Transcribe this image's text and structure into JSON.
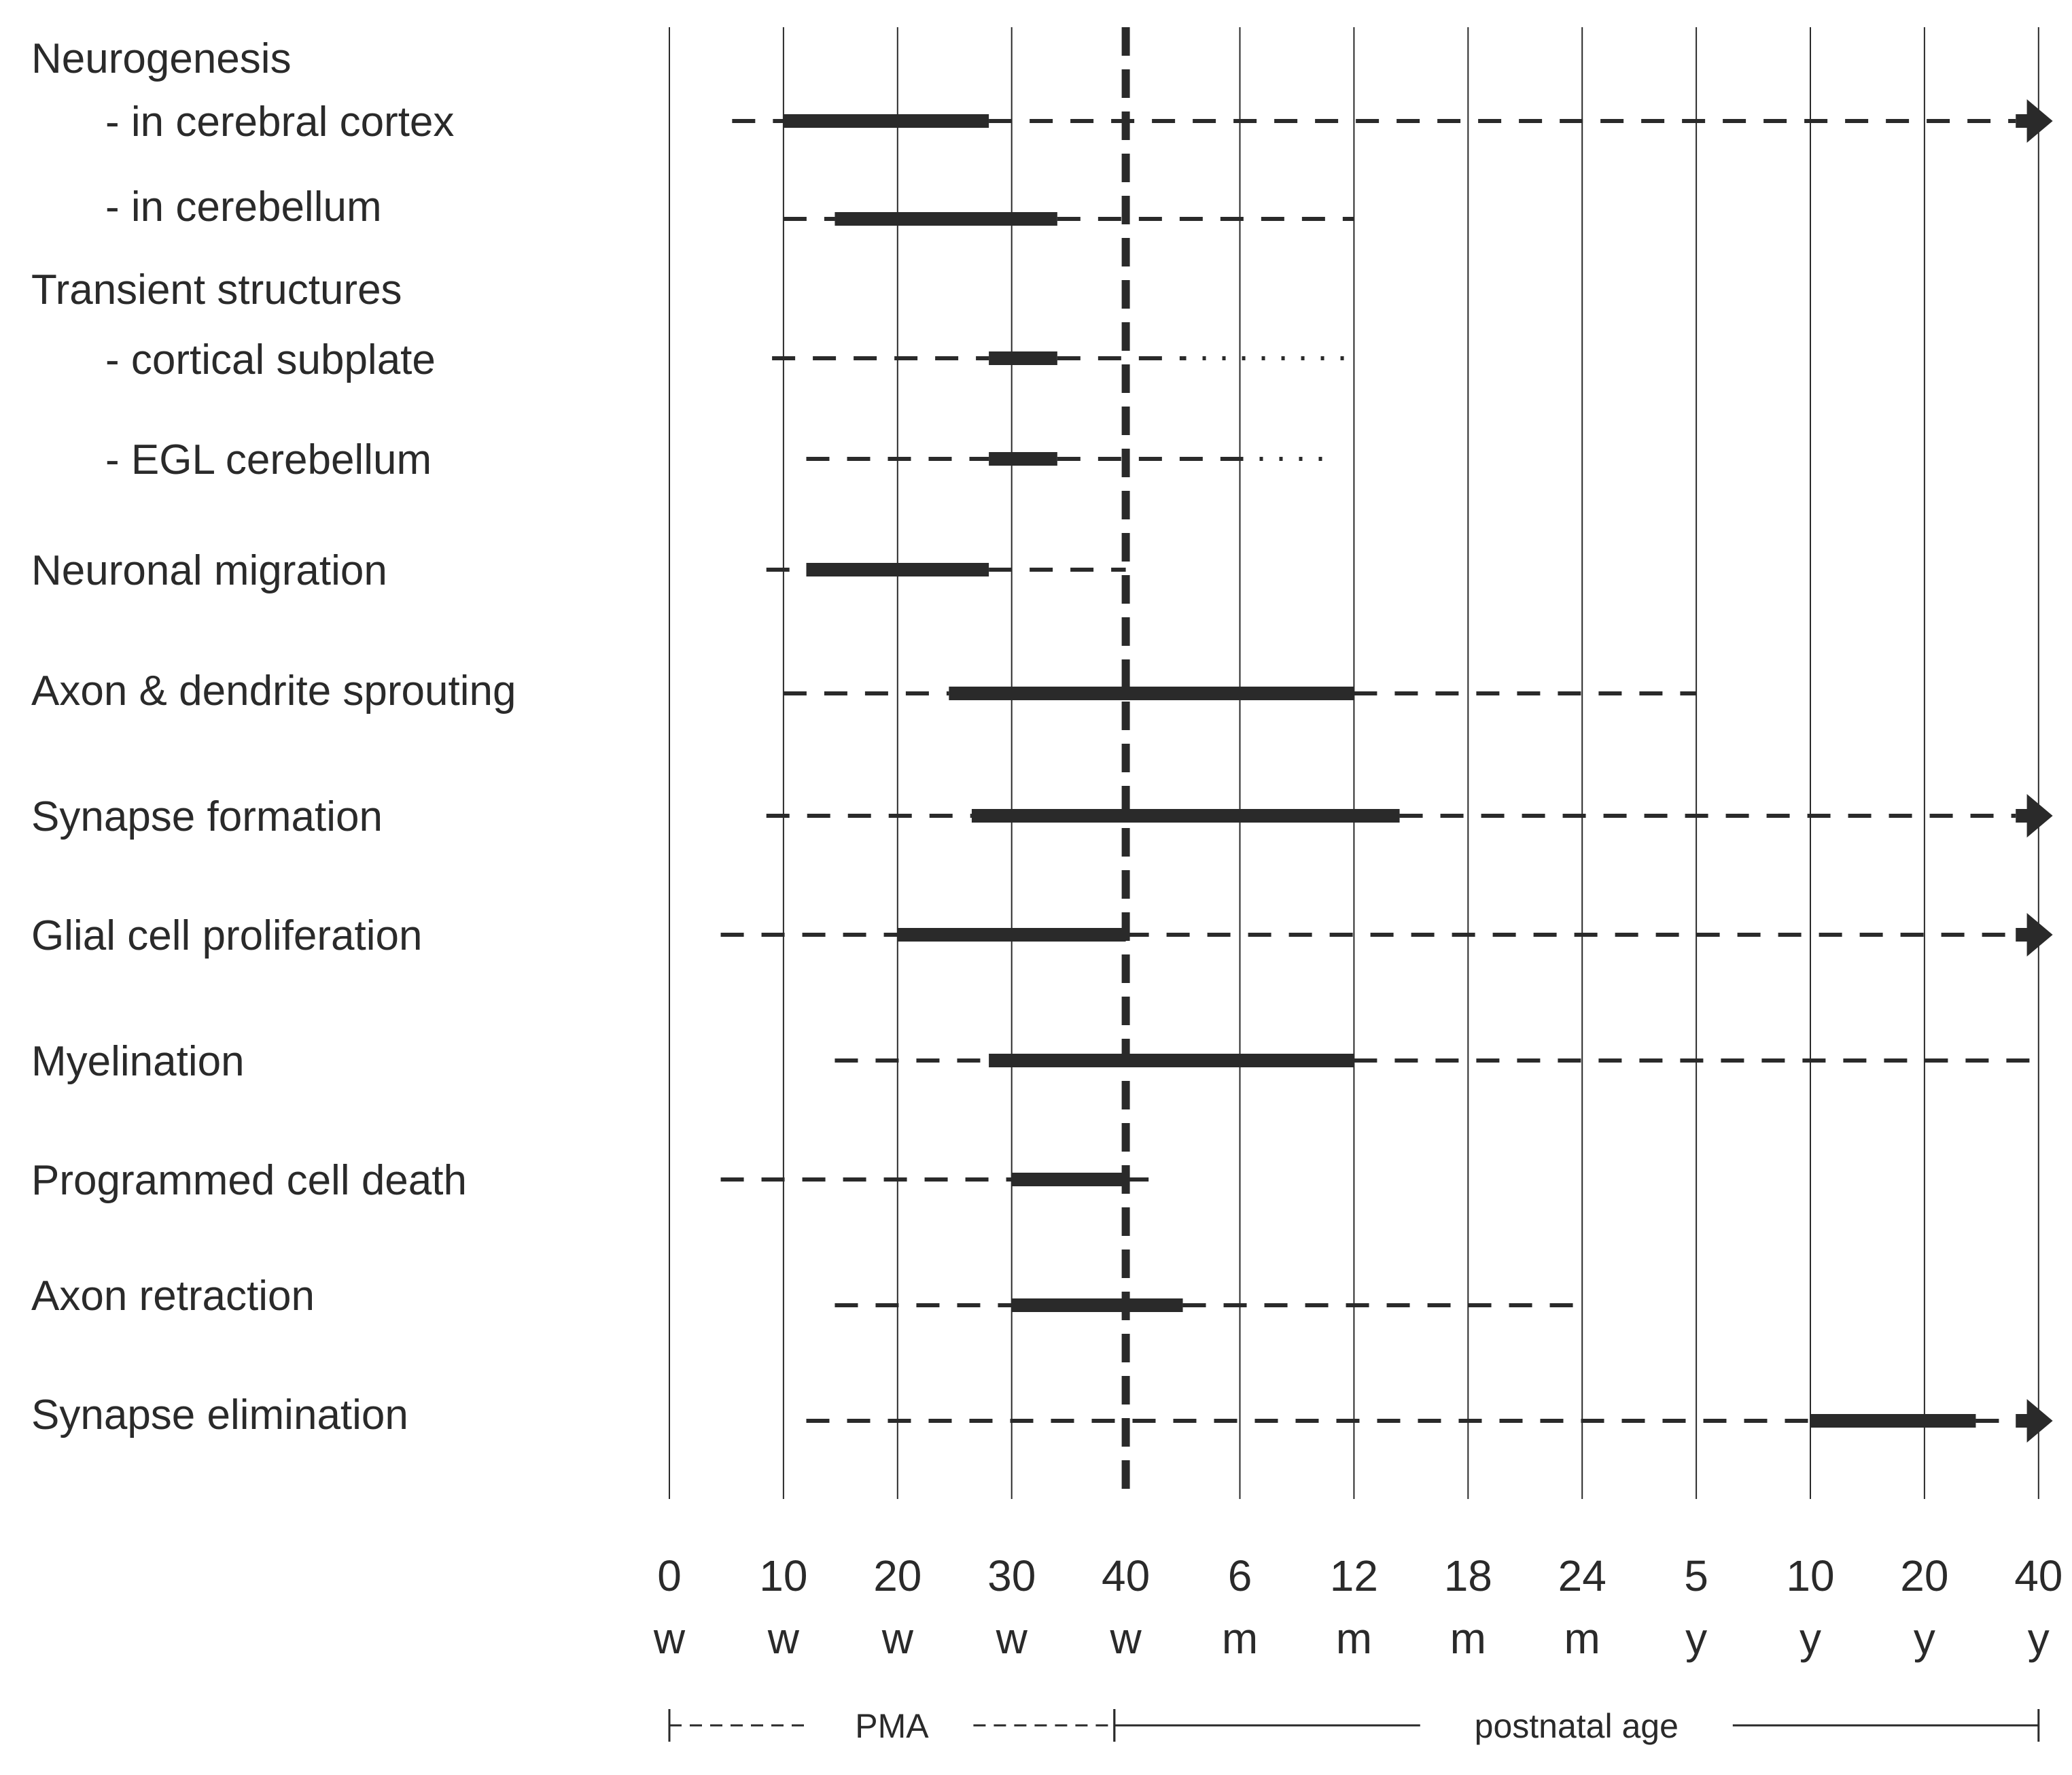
{
  "chart_data": {
    "type": "timeline",
    "title": "",
    "xlabel": "",
    "ylabel": "",
    "x_ticks": [
      {
        "value": "0",
        "unit": "w"
      },
      {
        "value": "10",
        "unit": "w"
      },
      {
        "value": "20",
        "unit": "w"
      },
      {
        "value": "30",
        "unit": "w"
      },
      {
        "value": "40",
        "unit": "w"
      },
      {
        "value": "6",
        "unit": "m"
      },
      {
        "value": "12",
        "unit": "m"
      },
      {
        "value": "18",
        "unit": "m"
      },
      {
        "value": "24",
        "unit": "m"
      },
      {
        "value": "5",
        "unit": "y"
      },
      {
        "value": "10",
        "unit": "y"
      },
      {
        "value": "20",
        "unit": "y"
      },
      {
        "value": "40",
        "unit": "y"
      }
    ],
    "birth_marker_tick_index": 4,
    "x_domain": [
      0,
      12
    ],
    "age_spans": [
      {
        "label": "PMA",
        "start": 0,
        "end": 3.9,
        "style": "dashed"
      },
      {
        "label": "postnatal age",
        "start": 3.9,
        "end": 12,
        "style": "solid"
      }
    ],
    "rows": [
      {
        "label": "Neurogenesis",
        "indent": 0,
        "heading": true
      },
      {
        "label": "-  in cerebral cortex",
        "indent": 1,
        "segments": [
          {
            "start": 0.55,
            "end": 1.0,
            "style": "dashed"
          },
          {
            "start": 1.0,
            "end": 2.8,
            "style": "solid"
          },
          {
            "start": 2.8,
            "end": 11.8,
            "style": "dashed"
          },
          {
            "start": 11.8,
            "end": 12.1,
            "style": "arrow"
          }
        ]
      },
      {
        "label": "-  in cerebellum",
        "indent": 1,
        "segments": [
          {
            "start": 1.0,
            "end": 1.45,
            "style": "dashed"
          },
          {
            "start": 1.45,
            "end": 3.4,
            "style": "solid"
          },
          {
            "start": 3.4,
            "end": 6.0,
            "style": "dashed"
          }
        ]
      },
      {
        "label": "Transient structures",
        "indent": 0,
        "heading": true
      },
      {
        "label": "-  cortical subplate",
        "indent": 1,
        "segments": [
          {
            "start": 0.9,
            "end": 2.8,
            "style": "dashed"
          },
          {
            "start": 2.8,
            "end": 3.4,
            "style": "solid"
          },
          {
            "start": 3.4,
            "end": 4.5,
            "style": "dashed"
          },
          {
            "start": 4.5,
            "end": 6.0,
            "style": "dotted"
          }
        ]
      },
      {
        "label": "-  EGL cerebellum",
        "indent": 1,
        "segments": [
          {
            "start": 1.2,
            "end": 2.8,
            "style": "dashed"
          },
          {
            "start": 2.8,
            "end": 3.4,
            "style": "solid"
          },
          {
            "start": 3.4,
            "end": 5.0,
            "style": "dashed"
          },
          {
            "start": 5.0,
            "end": 5.85,
            "style": "dotted"
          }
        ]
      },
      {
        "label": "Neuronal migration",
        "indent": 0,
        "segments": [
          {
            "start": 0.85,
            "end": 1.2,
            "style": "dashed"
          },
          {
            "start": 1.2,
            "end": 2.8,
            "style": "solid"
          },
          {
            "start": 2.8,
            "end": 4.0,
            "style": "dashed"
          }
        ]
      },
      {
        "label": "Axon & dendrite sprouting",
        "indent": 0,
        "segments": [
          {
            "start": 1.0,
            "end": 2.45,
            "style": "dashed"
          },
          {
            "start": 2.45,
            "end": 6.0,
            "style": "solid"
          },
          {
            "start": 6.0,
            "end": 9.0,
            "style": "dashed"
          }
        ]
      },
      {
        "label": "Synapse formation",
        "indent": 0,
        "segments": [
          {
            "start": 0.85,
            "end": 2.65,
            "style": "dashed"
          },
          {
            "start": 2.65,
            "end": 6.4,
            "style": "solid"
          },
          {
            "start": 6.4,
            "end": 11.8,
            "style": "dashed"
          },
          {
            "start": 11.8,
            "end": 12.1,
            "style": "arrow"
          }
        ]
      },
      {
        "label": "Glial cell proliferation",
        "indent": 0,
        "segments": [
          {
            "start": 0.45,
            "end": 2.0,
            "style": "dashed"
          },
          {
            "start": 2.0,
            "end": 4.0,
            "style": "solid"
          },
          {
            "start": 4.0,
            "end": 11.8,
            "style": "dashed"
          },
          {
            "start": 11.8,
            "end": 12.1,
            "style": "arrow"
          }
        ]
      },
      {
        "label": "Myelination",
        "indent": 0,
        "segments": [
          {
            "start": 1.45,
            "end": 2.8,
            "style": "dashed"
          },
          {
            "start": 2.8,
            "end": 6.0,
            "style": "solid"
          },
          {
            "start": 6.0,
            "end": 11.95,
            "style": "dashed"
          }
        ]
      },
      {
        "label": "Programmed cell death",
        "indent": 0,
        "segments": [
          {
            "start": 0.45,
            "end": 3.0,
            "style": "dashed"
          },
          {
            "start": 3.0,
            "end": 4.0,
            "style": "solid"
          },
          {
            "start": 4.0,
            "end": 4.2,
            "style": "dashed"
          }
        ]
      },
      {
        "label": "Axon retraction",
        "indent": 0,
        "segments": [
          {
            "start": 1.45,
            "end": 3.0,
            "style": "dashed"
          },
          {
            "start": 3.0,
            "end": 4.5,
            "style": "solid"
          },
          {
            "start": 4.5,
            "end": 8.0,
            "style": "dashed"
          }
        ]
      },
      {
        "label": "Synapse elimination",
        "indent": 0,
        "segments": [
          {
            "start": 1.2,
            "end": 10.0,
            "style": "dashed"
          },
          {
            "start": 10.0,
            "end": 11.45,
            "style": "solid"
          },
          {
            "start": 11.45,
            "end": 11.8,
            "style": "dashed"
          },
          {
            "start": 11.8,
            "end": 12.1,
            "style": "arrow"
          }
        ]
      }
    ]
  }
}
